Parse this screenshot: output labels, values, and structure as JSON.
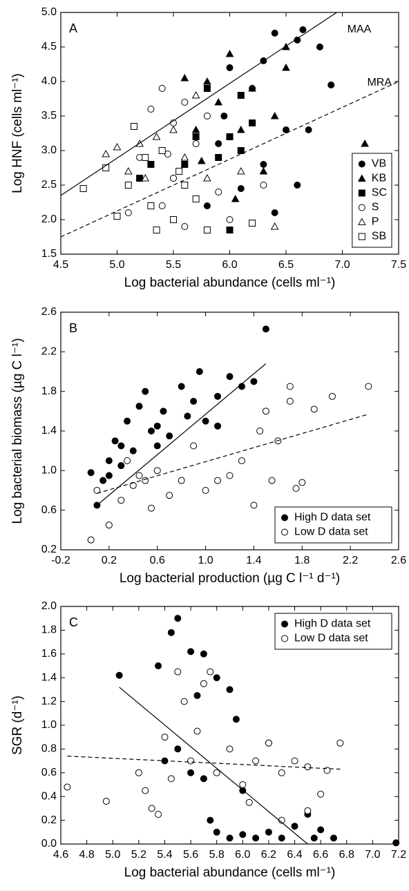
{
  "chart_data": [
    {
      "type": "scatter",
      "label": "A",
      "xlabel": "Log bacterial abundance (cells ml⁻¹)",
      "ylabel": "Log HNF (cells ml⁻¹)",
      "xlim": [
        4.5,
        7.5
      ],
      "xticks": [
        4.5,
        {
          "value": 5,
          "label": "5.0"
        },
        5.5,
        {
          "value": 6,
          "label": "6.0"
        },
        6.5,
        {
          "value": 7,
          "label": "7.0"
        },
        7.5
      ],
      "ylim": [
        1.5,
        5
      ],
      "yticks": [
        1.5,
        {
          "value": 2,
          "label": "2.0"
        },
        2.5,
        {
          "value": 3,
          "label": "3.0"
        },
        3.5,
        {
          "value": 4,
          "label": "4.0"
        },
        4.5,
        {
          "value": 5,
          "label": "5.0"
        }
      ],
      "legend": "lower right",
      "series": [
        {
          "name": "VB",
          "marker": "circle",
          "filled": true,
          "color": "#000000",
          "x": [
            6.4,
            6.6,
            6.65,
            6.8,
            6.9,
            6.5,
            6.3,
            6.1,
            5.9,
            6.2,
            6.0,
            5.8,
            6.4,
            6.7,
            6.6,
            5.5,
            6.3,
            5.95
          ],
          "values": [
            4.7,
            4.6,
            4.75,
            4.5,
            3.95,
            3.3,
            2.8,
            2.45,
            3.1,
            3.9,
            4.2,
            2.2,
            2.1,
            3.3,
            2.5,
            2.6,
            4.3,
            3.5
          ]
        },
        {
          "name": "KB",
          "marker": "triangle",
          "filled": true,
          "color": "#000000",
          "x": [
            7.2,
            6.5,
            6.0,
            5.8,
            5.6,
            5.9,
            6.1,
            6.3,
            5.7,
            6.2,
            6.4,
            6.5,
            5.75,
            6.05
          ],
          "values": [
            3.1,
            4.5,
            4.4,
            4.0,
            4.05,
            3.7,
            3.3,
            2.7,
            3.3,
            3.9,
            3.5,
            4.2,
            2.85,
            2.3
          ]
        },
        {
          "name": "SC",
          "marker": "square",
          "filled": true,
          "color": "#000000",
          "x": [
            5.8,
            6.0,
            6.1,
            5.9,
            5.3,
            6.0,
            5.6,
            6.2,
            5.7,
            6.1,
            5.2
          ],
          "values": [
            3.9,
            3.2,
            3.0,
            2.9,
            2.8,
            1.85,
            2.8,
            3.4,
            3.2,
            3.8,
            2.6
          ]
        },
        {
          "name": "S",
          "marker": "circle",
          "filled": false,
          "color": "#000000",
          "x": [
            5.4,
            5.3,
            5.5,
            5.6,
            5.7,
            5.4,
            5.1,
            5.6,
            5.5,
            5.9,
            6.0,
            5.8,
            5.2,
            6.3,
            5.45
          ],
          "values": [
            3.9,
            3.6,
            3.4,
            3.7,
            3.1,
            2.2,
            2.1,
            1.9,
            2.6,
            2.4,
            2.0,
            3.5,
            2.9,
            2.5,
            2.95
          ]
        },
        {
          "name": "P",
          "marker": "triangle",
          "filled": false,
          "color": "#000000",
          "x": [
            4.9,
            5.0,
            5.25,
            5.5,
            5.2,
            5.7,
            6.4,
            5.8,
            5.1,
            5.35,
            6.1,
            5.6
          ],
          "values": [
            2.95,
            3.05,
            2.6,
            3.3,
            3.1,
            3.8,
            1.9,
            2.6,
            2.7,
            3.2,
            2.7,
            2.9
          ]
        },
        {
          "name": "SB",
          "marker": "square",
          "filled": false,
          "color": "#000000",
          "x": [
            4.7,
            4.9,
            5.0,
            5.15,
            5.3,
            5.35,
            5.5,
            5.6,
            5.8,
            6.2,
            5.4,
            5.7,
            5.25,
            5.55,
            5.1
          ],
          "values": [
            2.45,
            2.75,
            2.05,
            3.35,
            2.2,
            1.85,
            2.0,
            2.5,
            1.85,
            1.95,
            3.0,
            2.3,
            2.9,
            2.7,
            2.5
          ]
        }
      ],
      "fits": [
        {
          "label": "MAA",
          "style": "solid",
          "x": [
            4.5,
            6.95
          ],
          "y": [
            2.35,
            5.0
          ]
        },
        {
          "label": "MRA",
          "style": "dashed",
          "x": [
            4.5,
            7.5
          ],
          "y": [
            1.75,
            4.0
          ]
        }
      ]
    },
    {
      "type": "scatter",
      "label": "B",
      "xlabel": "Log bacterial production (µg  C l⁻¹ d⁻¹)",
      "ylabel": "Log bacterial biomass (µg C l⁻¹)",
      "xlim": [
        -0.2,
        2.6
      ],
      "xticks": [
        -0.2,
        0.2,
        0.6,
        {
          "value": 1,
          "label": "1.0"
        },
        1.4,
        1.8,
        2.2,
        2.6
      ],
      "ylim": [
        0.2,
        2.6
      ],
      "yticks": [
        0.2,
        0.6,
        {
          "value": 1,
          "label": "1.0"
        },
        1.4,
        1.8,
        2.2,
        2.6
      ],
      "legend": "lower right",
      "series": [
        {
          "name": "High D data set",
          "marker": "circle",
          "filled": true,
          "color": "#000000",
          "x": [
            0.05,
            0.1,
            0.15,
            0.2,
            0.25,
            0.3,
            0.35,
            0.4,
            0.45,
            0.5,
            0.55,
            0.6,
            0.65,
            0.7,
            0.8,
            0.85,
            0.9,
            0.95,
            1.0,
            1.1,
            1.2,
            1.3,
            1.4,
            1.5,
            1.1,
            0.3,
            0.2,
            0.6
          ],
          "values": [
            0.98,
            0.65,
            0.9,
            1.1,
            1.3,
            1.05,
            1.5,
            1.2,
            1.65,
            1.8,
            1.4,
            1.25,
            1.6,
            1.35,
            1.85,
            1.55,
            1.7,
            2.0,
            1.5,
            1.75,
            1.95,
            1.85,
            1.9,
            2.43,
            1.45,
            1.25,
            0.95,
            1.45
          ]
        },
        {
          "name": "Low D data set",
          "marker": "circle",
          "filled": false,
          "color": "#000000",
          "x": [
            0.05,
            0.1,
            0.2,
            0.3,
            0.4,
            0.5,
            0.55,
            0.6,
            0.7,
            0.8,
            0.9,
            1.0,
            1.1,
            1.2,
            1.3,
            1.4,
            1.45,
            1.5,
            1.6,
            1.7,
            1.75,
            1.8,
            1.7,
            1.9,
            2.05,
            2.35,
            1.55,
            0.35,
            0.45
          ],
          "values": [
            0.3,
            0.8,
            0.45,
            0.7,
            0.85,
            0.9,
            0.62,
            1.0,
            0.75,
            0.9,
            1.25,
            0.8,
            0.9,
            0.95,
            1.1,
            0.65,
            1.4,
            1.6,
            1.3,
            1.7,
            0.82,
            0.88,
            1.85,
            1.62,
            1.75,
            1.85,
            0.9,
            1.1,
            0.95
          ]
        }
      ],
      "fits": [
        {
          "style": "solid",
          "x": [
            0.1,
            1.5
          ],
          "y": [
            0.65,
            2.08
          ]
        },
        {
          "style": "dashed",
          "x": [
            0.1,
            2.35
          ],
          "y": [
            0.77,
            1.57
          ]
        }
      ]
    },
    {
      "type": "scatter",
      "label": "C",
      "xlabel": "Log bacterial abundance (cells ml⁻¹)",
      "ylabel": "SGR (d⁻¹)",
      "xlim": [
        4.6,
        7.2
      ],
      "xticks": [
        4.6,
        4.8,
        {
          "value": 5,
          "label": "5.0"
        },
        5.2,
        5.4,
        5.6,
        5.8,
        {
          "value": 6,
          "label": "6.0"
        },
        6.2,
        6.4,
        6.6,
        6.8,
        {
          "value": 7,
          "label": "7.0"
        },
        7.2
      ],
      "ylim": [
        0,
        2
      ],
      "yticks": [
        {
          "value": 0,
          "label": "0.0"
        },
        0.2,
        0.4,
        0.6,
        0.8,
        {
          "value": 1,
          "label": "1.0"
        },
        1.2,
        1.4,
        1.6,
        1.8,
        {
          "value": 2,
          "label": "2.0"
        }
      ],
      "legend": "upper right",
      "series": [
        {
          "name": "High D data set",
          "marker": "circle",
          "filled": true,
          "color": "#000000",
          "x": [
            5.05,
            5.35,
            5.45,
            5.5,
            5.6,
            5.7,
            5.65,
            5.8,
            5.9,
            5.95,
            5.5,
            5.6,
            5.7,
            5.8,
            5.9,
            6.0,
            6.1,
            6.2,
            6.3,
            6.5,
            6.6,
            6.7,
            7.18,
            6.0,
            6.2,
            5.4,
            6.4,
            5.75,
            6.55
          ],
          "values": [
            1.42,
            1.5,
            1.78,
            1.9,
            1.62,
            1.6,
            1.25,
            1.4,
            1.3,
            1.05,
            0.8,
            0.6,
            0.55,
            0.1,
            0.05,
            0.08,
            0.05,
            0.1,
            0.05,
            0.25,
            0.12,
            0.05,
            0.01,
            0.45,
            0.85,
            0.7,
            0.15,
            0.2,
            0.05
          ]
        },
        {
          "name": "Low D data set",
          "marker": "circle",
          "filled": false,
          "color": "#000000",
          "x": [
            4.65,
            4.95,
            5.2,
            5.3,
            5.4,
            5.5,
            5.55,
            5.6,
            5.7,
            5.75,
            5.8,
            5.9,
            6.0,
            6.1,
            6.2,
            6.3,
            6.4,
            6.5,
            6.6,
            6.65,
            6.75,
            5.45,
            5.35,
            6.5,
            5.65,
            6.05,
            5.25,
            6.3
          ],
          "values": [
            0.48,
            0.36,
            0.6,
            0.3,
            0.9,
            1.45,
            1.2,
            0.7,
            1.35,
            1.45,
            0.6,
            0.8,
            0.5,
            0.7,
            0.85,
            0.6,
            0.7,
            0.65,
            0.42,
            0.62,
            0.85,
            0.55,
            0.25,
            0.28,
            0.95,
            0.35,
            0.45,
            0.2
          ]
        }
      ],
      "fits": [
        {
          "style": "solid",
          "x": [
            5.05,
            6.5
          ],
          "y": [
            1.32,
            0.0
          ]
        },
        {
          "style": "dashed",
          "x": [
            4.65,
            6.75
          ],
          "y": [
            0.74,
            0.63
          ]
        }
      ]
    }
  ]
}
